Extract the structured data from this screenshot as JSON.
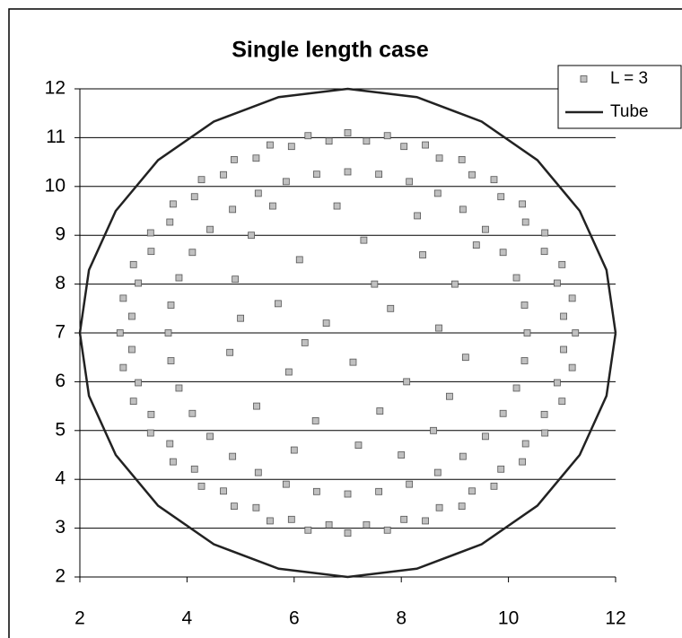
{
  "chart_data": {
    "type": "scatter",
    "title": "Single length case",
    "xlim": [
      2,
      12
    ],
    "ylim": [
      2,
      12
    ],
    "xticks": [
      2,
      4,
      6,
      8,
      10,
      12
    ],
    "yticks": [
      2,
      3,
      4,
      5,
      6,
      7,
      8,
      9,
      10,
      11,
      12
    ],
    "grid": true,
    "legend": "upper right",
    "series": [
      {
        "name": "L = 3",
        "color": "#c0c0c0",
        "x": [
          11.25,
          11.19,
          11.0,
          10.68,
          10.26,
          9.73,
          9.13,
          8.45,
          7.74,
          7.0,
          6.26,
          5.55,
          4.88,
          4.27,
          3.74,
          3.32,
          3.0,
          2.81,
          2.75,
          2.81,
          3.0,
          3.32,
          3.74,
          4.27,
          4.88,
          5.55,
          6.26,
          7.0,
          7.74,
          8.45,
          9.13,
          9.73,
          10.26,
          10.68,
          11.0,
          11.19,
          11.03,
          10.91,
          10.67,
          10.32,
          9.86,
          9.32,
          8.71,
          8.05,
          7.35,
          6.65,
          5.95,
          5.29,
          4.68,
          4.14,
          3.68,
          3.33,
          3.09,
          2.97,
          2.97,
          3.09,
          3.33,
          3.68,
          4.14,
          4.68,
          5.29,
          5.95,
          6.65,
          7.35,
          8.05,
          8.71,
          9.32,
          9.86,
          10.32,
          10.67,
          10.91,
          11.03,
          10.35,
          10.3,
          10.15,
          9.9,
          9.57,
          9.15,
          8.68,
          8.15,
          7.58,
          7.0,
          6.42,
          5.85,
          5.33,
          4.85,
          4.43,
          4.1,
          3.85,
          3.7,
          3.65,
          3.7,
          3.85,
          4.1,
          4.43,
          4.85,
          5.33,
          5.85,
          6.42,
          7.0,
          7.58,
          8.15,
          8.68,
          9.15,
          9.57,
          9.9,
          10.15,
          10.3,
          5.2,
          6.1,
          7.3,
          8.4,
          9.0,
          5.7,
          6.6,
          7.8,
          8.7,
          4.8,
          5.9,
          7.1,
          8.1,
          9.2,
          5.3,
          6.4,
          7.6,
          8.6,
          6.0,
          7.2,
          8.0,
          4.9,
          9.4,
          6.8,
          5.6,
          8.3,
          7.5,
          6.2,
          8.9,
          5.0
        ],
        "values": [
          7.0,
          7.71,
          8.4,
          9.05,
          9.64,
          10.14,
          10.55,
          10.85,
          11.04,
          11.1,
          11.04,
          10.85,
          10.55,
          10.14,
          9.64,
          9.05,
          8.4,
          7.71,
          7.0,
          6.29,
          5.6,
          4.95,
          4.36,
          3.86,
          3.45,
          3.15,
          2.96,
          2.9,
          2.96,
          3.15,
          3.45,
          3.86,
          4.36,
          4.95,
          5.6,
          6.29,
          7.34,
          8.02,
          8.67,
          9.27,
          9.79,
          10.24,
          10.58,
          10.82,
          10.93,
          10.93,
          10.82,
          10.58,
          10.24,
          9.79,
          9.27,
          8.67,
          8.02,
          7.34,
          6.66,
          5.98,
          5.33,
          4.73,
          4.21,
          3.76,
          3.42,
          3.18,
          3.07,
          3.07,
          3.18,
          3.42,
          3.76,
          4.21,
          4.73,
          5.33,
          5.98,
          6.66,
          7.0,
          7.57,
          8.13,
          8.65,
          9.12,
          9.53,
          9.86,
          10.1,
          10.25,
          10.3,
          10.25,
          10.1,
          9.86,
          9.53,
          9.12,
          8.65,
          8.13,
          7.57,
          7.0,
          6.43,
          5.87,
          5.35,
          4.88,
          4.47,
          4.14,
          3.9,
          3.75,
          3.7,
          3.75,
          3.9,
          4.14,
          4.47,
          4.88,
          5.35,
          5.87,
          6.43,
          9.0,
          8.5,
          8.9,
          8.6,
          8.0,
          7.6,
          7.2,
          7.5,
          7.1,
          6.6,
          6.2,
          6.4,
          6.0,
          6.5,
          5.5,
          5.2,
          5.4,
          5.0,
          4.6,
          4.7,
          4.5,
          8.1,
          8.8,
          9.6,
          9.6,
          9.4,
          8.0,
          6.8,
          5.7,
          7.3
        ]
      },
      {
        "name": "Tube",
        "color": "#222222",
        "line": true,
        "x": [
          12,
          11.83,
          11.33,
          10.54,
          9.5,
          8.29,
          7,
          5.71,
          4.5,
          3.46,
          2.67,
          2.17,
          2,
          2.17,
          2.67,
          3.46,
          4.5,
          5.71,
          7,
          8.29,
          9.5,
          10.54,
          11.33,
          11.83,
          12
        ],
        "values": [
          7,
          8.29,
          9.5,
          10.54,
          11.33,
          11.83,
          12,
          11.83,
          11.33,
          10.54,
          9.5,
          8.29,
          7,
          5.71,
          4.5,
          3.46,
          2.67,
          2.17,
          2,
          2.17,
          2.67,
          3.46,
          4.5,
          5.71,
          7
        ]
      }
    ]
  }
}
